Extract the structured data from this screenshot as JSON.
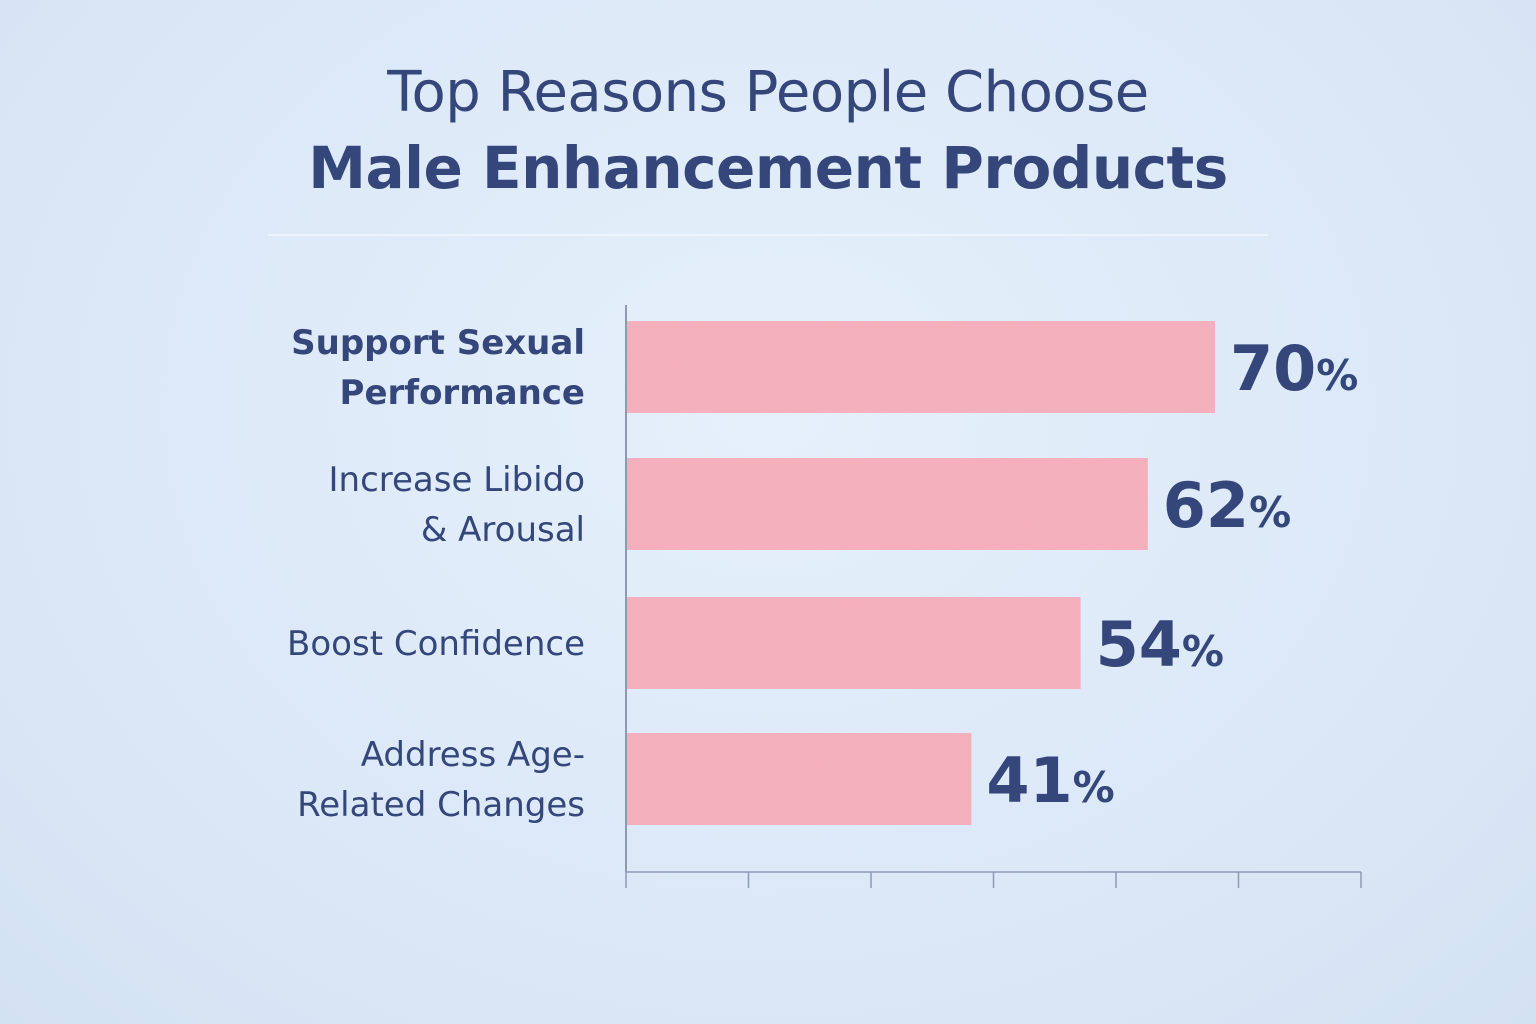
{
  "title": {
    "line1": "Top Reasons People Choose",
    "line2": "Male Enhancement Products"
  },
  "colors": {
    "background": "#dce9f8",
    "bar": "#f7b1bf",
    "text": "#34467a",
    "axis": "#8e9ab4"
  },
  "chart_data": {
    "type": "bar",
    "orientation": "horizontal",
    "title": "Top Reasons People Choose Male Enhancement Products",
    "categories": [
      [
        "Support Sexual",
        "Performance"
      ],
      [
        "Increase Libido",
        "& Arousal"
      ],
      [
        "Boost Confidence"
      ],
      [
        "Address Age-",
        "Related Changes"
      ]
    ],
    "values": [
      70,
      62,
      54,
      41
    ],
    "value_labels": [
      "70",
      "62",
      "54",
      "41"
    ],
    "unit": "%",
    "xlim": [
      0,
      100
    ],
    "grid": false,
    "legend": "none"
  }
}
